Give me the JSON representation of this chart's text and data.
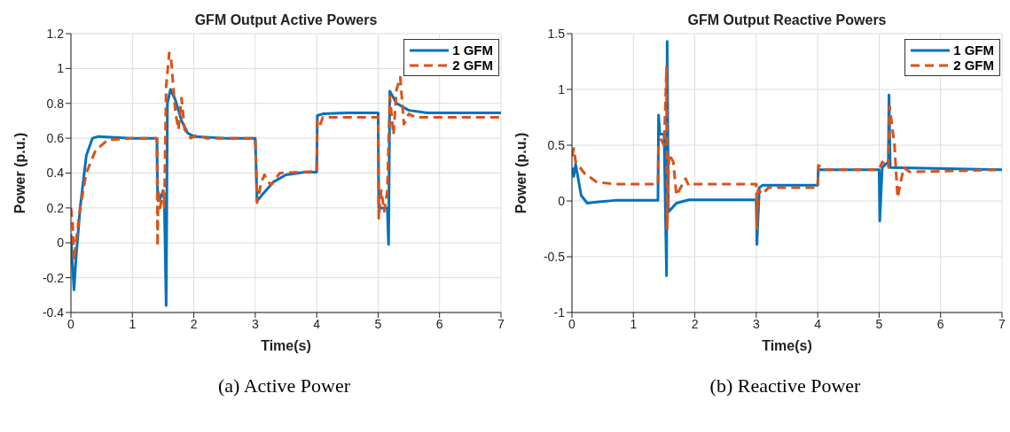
{
  "chart_data": [
    {
      "type": "line",
      "title": "GFM Output Active Powers",
      "xlabel": "Time(s)",
      "ylabel": "Power (p.u.)",
      "annotations": [
        "(a) Active Power"
      ],
      "xlim": [
        0,
        7
      ],
      "xticks": [
        0,
        1,
        2,
        3,
        4,
        5,
        6,
        7
      ],
      "ylim": [
        -0.4,
        1.2
      ],
      "yticks": [
        -0.4,
        -0.2,
        0,
        0.2,
        0.4,
        0.6,
        0.8,
        1,
        1.2
      ],
      "grid": true,
      "legend": "top right",
      "series": [
        {
          "name": "1 GFM",
          "color": "#0072bd",
          "line_style": "solid",
          "x": [
            0,
            0.02,
            0.05,
            0.08,
            0.15,
            0.25,
            0.35,
            0.45,
            0.7,
            1.0,
            1.4,
            1.41,
            1.45,
            1.5,
            1.52,
            1.55,
            1.57,
            1.62,
            1.7,
            1.8,
            1.9,
            2.0,
            2.5,
            3.0,
            3.03,
            3.1,
            3.3,
            3.5,
            3.8,
            4.0,
            4.01,
            4.1,
            4.5,
            5.0,
            5.01,
            5.1,
            5.15,
            5.17,
            5.19,
            5.3,
            5.5,
            5.8,
            7
          ],
          "values": [
            0.05,
            -0.1,
            -0.27,
            -0.1,
            0.2,
            0.5,
            0.6,
            0.61,
            0.605,
            0.6,
            0.6,
            0.3,
            0.25,
            0.3,
            0.25,
            -0.36,
            0.8,
            0.88,
            0.82,
            0.7,
            0.63,
            0.61,
            0.6,
            0.6,
            0.24,
            0.27,
            0.35,
            0.39,
            0.405,
            0.405,
            0.73,
            0.74,
            0.745,
            0.745,
            0.2,
            0.2,
            0.2,
            -0.01,
            0.87,
            0.8,
            0.76,
            0.745,
            0.745
          ]
        },
        {
          "name": "2 GFM",
          "color": "#d95319",
          "line_style": "dashed",
          "x": [
            0,
            0.03,
            0.05,
            0.08,
            0.15,
            0.25,
            0.4,
            0.6,
            1.0,
            1.4,
            1.41,
            1.42,
            1.45,
            1.5,
            1.52,
            1.55,
            1.6,
            1.63,
            1.7,
            1.75,
            1.8,
            1.85,
            1.95,
            2.05,
            2.2,
            3.0,
            3.03,
            3.1,
            3.15,
            3.25,
            3.4,
            4.0,
            4.01,
            4.05,
            4.1,
            4.3,
            5.0,
            5.01,
            5.05,
            5.1,
            5.15,
            5.19,
            5.25,
            5.3,
            5.36,
            5.42,
            5.5,
            5.6,
            7
          ],
          "values": [
            0.2,
            0.1,
            -0.1,
            0,
            0.2,
            0.4,
            0.53,
            0.59,
            0.6,
            0.6,
            -0.02,
            0.3,
            0.2,
            0.3,
            0.2,
            0.9,
            1.09,
            1.05,
            0.75,
            0.65,
            0.83,
            0.65,
            0.6,
            0.62,
            0.6,
            0.6,
            0.23,
            0.35,
            0.39,
            0.33,
            0.4,
            0.41,
            0.7,
            0.67,
            0.72,
            0.72,
            0.72,
            0.14,
            0.3,
            0.18,
            0.3,
            0.84,
            0.62,
            0.88,
            0.95,
            0.68,
            0.74,
            0.72,
            0.72
          ]
        }
      ]
    },
    {
      "type": "line",
      "title": "GFM Output Reactive Powers",
      "xlabel": "Time(s)",
      "ylabel": "Power (p.u.)",
      "annotations": [
        "(b) Reactive Power"
      ],
      "xlim": [
        0,
        7
      ],
      "xticks": [
        0,
        1,
        2,
        3,
        4,
        5,
        6,
        7
      ],
      "ylim": [
        -1,
        1.5
      ],
      "yticks": [
        -1,
        -0.5,
        0,
        0.5,
        1,
        1.5
      ],
      "grid": true,
      "legend": "top right",
      "series": [
        {
          "name": "1 GFM",
          "color": "#0072bd",
          "line_style": "solid",
          "x": [
            0,
            0.03,
            0.06,
            0.15,
            0.25,
            0.4,
            0.7,
            1.4,
            1.41,
            1.43,
            1.5,
            1.54,
            1.55,
            1.57,
            1.7,
            1.9,
            3.0,
            3.01,
            3.05,
            3.1,
            4.0,
            4.01,
            4.1,
            5.0,
            5.01,
            5.05,
            5.15,
            5.16,
            5.18,
            7
          ],
          "values": [
            0.3,
            0.22,
            0.33,
            0.05,
            -0.02,
            -0.01,
            0.005,
            0.005,
            0.77,
            0.6,
            0.6,
            -0.67,
            1.43,
            -0.1,
            -0.02,
            0.01,
            0.01,
            -0.39,
            0.12,
            0.14,
            0.14,
            0.28,
            0.28,
            0.28,
            -0.18,
            0.3,
            0.35,
            0.95,
            0.3,
            0.28
          ]
        },
        {
          "name": "2 GFM",
          "color": "#d95319",
          "line_style": "dashed",
          "x": [
            0,
            0.03,
            0.06,
            0.2,
            0.4,
            0.7,
            1.4,
            1.41,
            1.45,
            1.5,
            1.54,
            1.55,
            1.58,
            1.65,
            1.7,
            1.8,
            1.85,
            1.9,
            2.0,
            3.0,
            3.01,
            3.03,
            3.1,
            3.2,
            3.3,
            4.0,
            4.01,
            4.1,
            4.3,
            5.0,
            5.05,
            5.15,
            5.17,
            5.25,
            5.3,
            5.4,
            5.5,
            7
          ],
          "values": [
            0.4,
            0.47,
            0.35,
            0.25,
            0.17,
            0.15,
            0.15,
            0.5,
            0.55,
            0.5,
            1.2,
            -0.25,
            0.42,
            0.35,
            0.05,
            0.15,
            0.2,
            0.14,
            0.15,
            0.15,
            -0.25,
            0.1,
            0.06,
            0.12,
            0.12,
            0.12,
            0.32,
            0.28,
            0.28,
            0.28,
            0.35,
            0.3,
            0.85,
            0.5,
            0.03,
            0.3,
            0.26,
            0.28
          ]
        }
      ]
    }
  ]
}
